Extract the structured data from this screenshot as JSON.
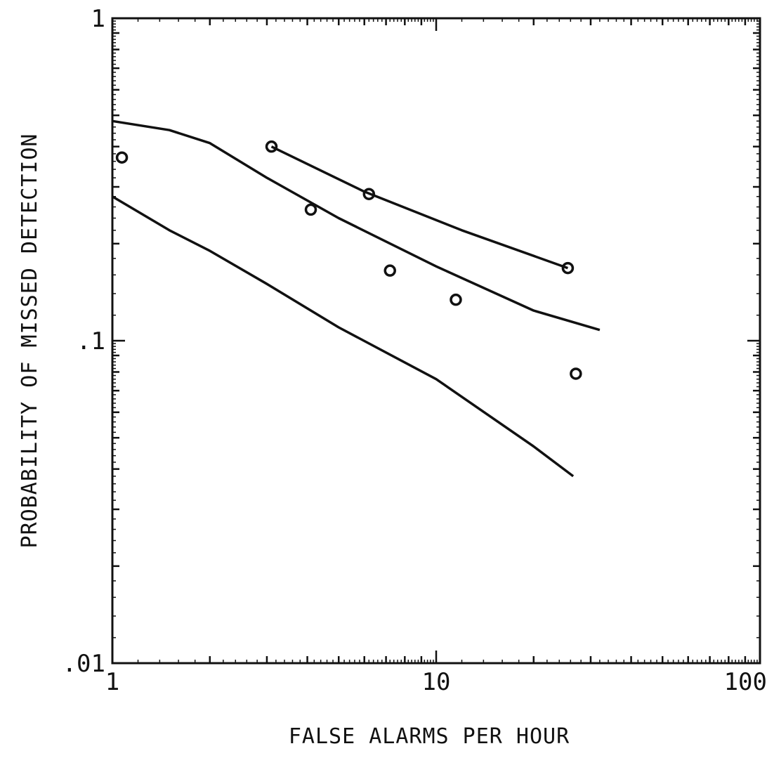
{
  "chart_data": {
    "type": "line",
    "title": "",
    "xlabel": "FALSE ALARMS PER HOUR",
    "ylabel": "PROBABILITY OF MISSED DETECTION",
    "xscale": "log",
    "yscale": "log",
    "xlim": [
      1,
      100
    ],
    "ylim": [
      0.01,
      1
    ],
    "grid": false,
    "legend": "none",
    "x_ticks": [
      {
        "value": 1,
        "label": "1"
      },
      {
        "value": 10,
        "label": "10"
      },
      {
        "value": 100,
        "label": "100"
      }
    ],
    "y_ticks": [
      {
        "value": 1,
        "label": "1"
      },
      {
        "value": 0.1,
        "label": ".1"
      },
      {
        "value": 0.01,
        "label": ".01"
      }
    ],
    "lines": [
      {
        "x": [
          1,
          1.5,
          2,
          3,
          5,
          10,
          20,
          32
        ],
        "y": [
          0.48,
          0.45,
          0.41,
          0.32,
          0.24,
          0.17,
          0.124,
          0.108
        ]
      },
      {
        "x": [
          1,
          1.5,
          2,
          3,
          5,
          10,
          20,
          26.5
        ],
        "y": [
          0.28,
          0.22,
          0.19,
          0.15,
          0.11,
          0.076,
          0.047,
          0.038
        ]
      },
      {
        "x": [
          3.1,
          6,
          12,
          25.5
        ],
        "y": [
          0.4,
          0.29,
          0.22,
          0.168
        ]
      }
    ],
    "points": {
      "x": [
        1.07,
        3.1,
        4.1,
        6.2,
        7.2,
        11.5,
        25.5,
        27
      ],
      "y": [
        0.37,
        0.4,
        0.255,
        0.285,
        0.165,
        0.134,
        0.168,
        0.079
      ]
    },
    "colors": {
      "ink": "#111111",
      "background": "#ffffff"
    }
  }
}
